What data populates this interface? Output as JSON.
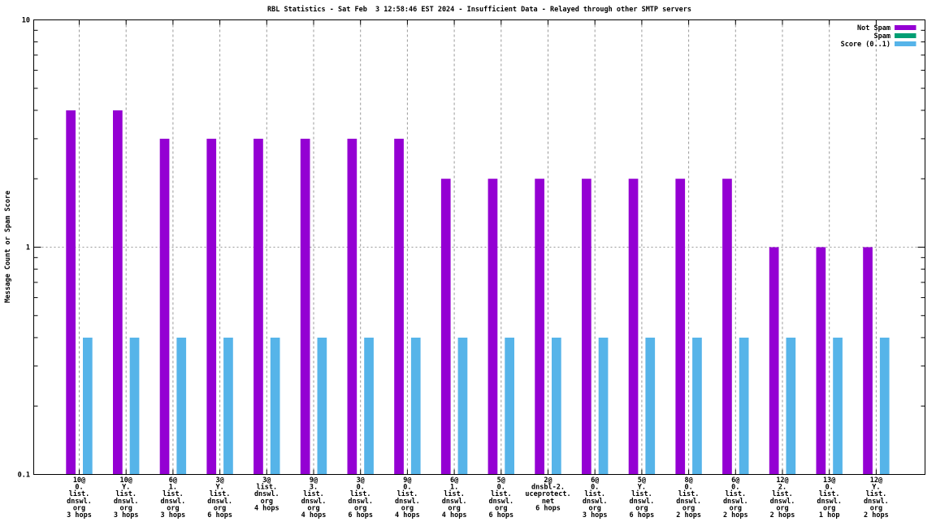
{
  "chart_data": {
    "type": "bar",
    "y_scale": "log",
    "title": "RBL Statistics - Sat Feb  3 12:58:46 EST 2024 - Insufficient Data - Relayed through other SMTP servers",
    "ylabel": "Message Count or Spam Score",
    "ylim": [
      0.1,
      10
    ],
    "yticks": [
      {
        "value": 10,
        "label": "10"
      },
      {
        "value": 1,
        "label": "1"
      },
      {
        "value": 0.1,
        "label": "0.1"
      }
    ],
    "grid": {
      "vertical_dashed_per_category": true,
      "horizontal_dotted_at_y1": true
    },
    "legend": {
      "position": "top-right",
      "entries": [
        {
          "label": "Not Spam",
          "color": "#9400D3"
        },
        {
          "label": "Spam",
          "color": "#009E73"
        },
        {
          "label": "Score (0..1)",
          "color": "#56B4E9"
        }
      ]
    },
    "categories": [
      [
        "10@",
        "0.",
        "list.",
        "dnswl.",
        "org",
        "3 hops"
      ],
      [
        "10@",
        "Y.",
        "list.",
        "dnswl.",
        "org",
        "3 hops"
      ],
      [
        "6@",
        "1.",
        "list.",
        "dnswl.",
        "org",
        "3 hops"
      ],
      [
        "3@",
        "Y.",
        "list.",
        "dnswl.",
        "org",
        "6 hops"
      ],
      [
        "3@",
        "list.",
        "dnswl.",
        "org",
        "4 hops"
      ],
      [
        "9@",
        "3.",
        "list.",
        "dnswl.",
        "org",
        "4 hops"
      ],
      [
        "3@",
        "0.",
        "list.",
        "dnswl.",
        "org",
        "6 hops"
      ],
      [
        "9@",
        "0.",
        "list.",
        "dnswl.",
        "org",
        "4 hops"
      ],
      [
        "6@",
        "1.",
        "list.",
        "dnswl.",
        "org",
        "4 hops"
      ],
      [
        "5@",
        "0.",
        "list.",
        "dnswl.",
        "org",
        "6 hops"
      ],
      [
        "2@",
        "dnsbl-2.",
        "uceprotect.",
        "net",
        "6 hops"
      ],
      [
        "6@",
        "0.",
        "list.",
        "dnswl.",
        "org",
        "3 hops"
      ],
      [
        "5@",
        "Y.",
        "list.",
        "dnswl.",
        "org",
        "6 hops"
      ],
      [
        "8@",
        "0.",
        "list.",
        "dnswl.",
        "org",
        "2 hops"
      ],
      [
        "6@",
        "0.",
        "list.",
        "dnswl.",
        "org",
        "2 hops"
      ],
      [
        "12@",
        "2.",
        "list.",
        "dnswl.",
        "org",
        "2 hops"
      ],
      [
        "13@",
        "0.",
        "list.",
        "dnswl.",
        "org",
        "1 hop"
      ],
      [
        "12@",
        "Y.",
        "list.",
        "dnswl.",
        "org",
        "2 hops"
      ]
    ],
    "series": [
      {
        "name": "Not Spam",
        "color": "#9400D3",
        "values": [
          4,
          4,
          3,
          3,
          3,
          3,
          3,
          3,
          2,
          2,
          2,
          2,
          2,
          2,
          2,
          1,
          1,
          1
        ]
      },
      {
        "name": "Spam",
        "color": "#009E73",
        "values": [
          0,
          0,
          0,
          0,
          0,
          0,
          0,
          0,
          0,
          0,
          0,
          0,
          0,
          0,
          0,
          0,
          0,
          0
        ]
      },
      {
        "name": "Score (0..1)",
        "color": "#56B4E9",
        "values": [
          0.4,
          0.4,
          0.4,
          0.4,
          0.4,
          0.4,
          0.4,
          0.4,
          0.4,
          0.4,
          0.4,
          0.4,
          0.4,
          0.4,
          0.4,
          0.4,
          0.4,
          0.4
        ]
      }
    ],
    "colors": {
      "not_spam": "#9400D3",
      "spam": "#009E73",
      "score": "#56B4E9",
      "grid": "#999999",
      "axis": "#000000",
      "background": "#ffffff"
    }
  }
}
